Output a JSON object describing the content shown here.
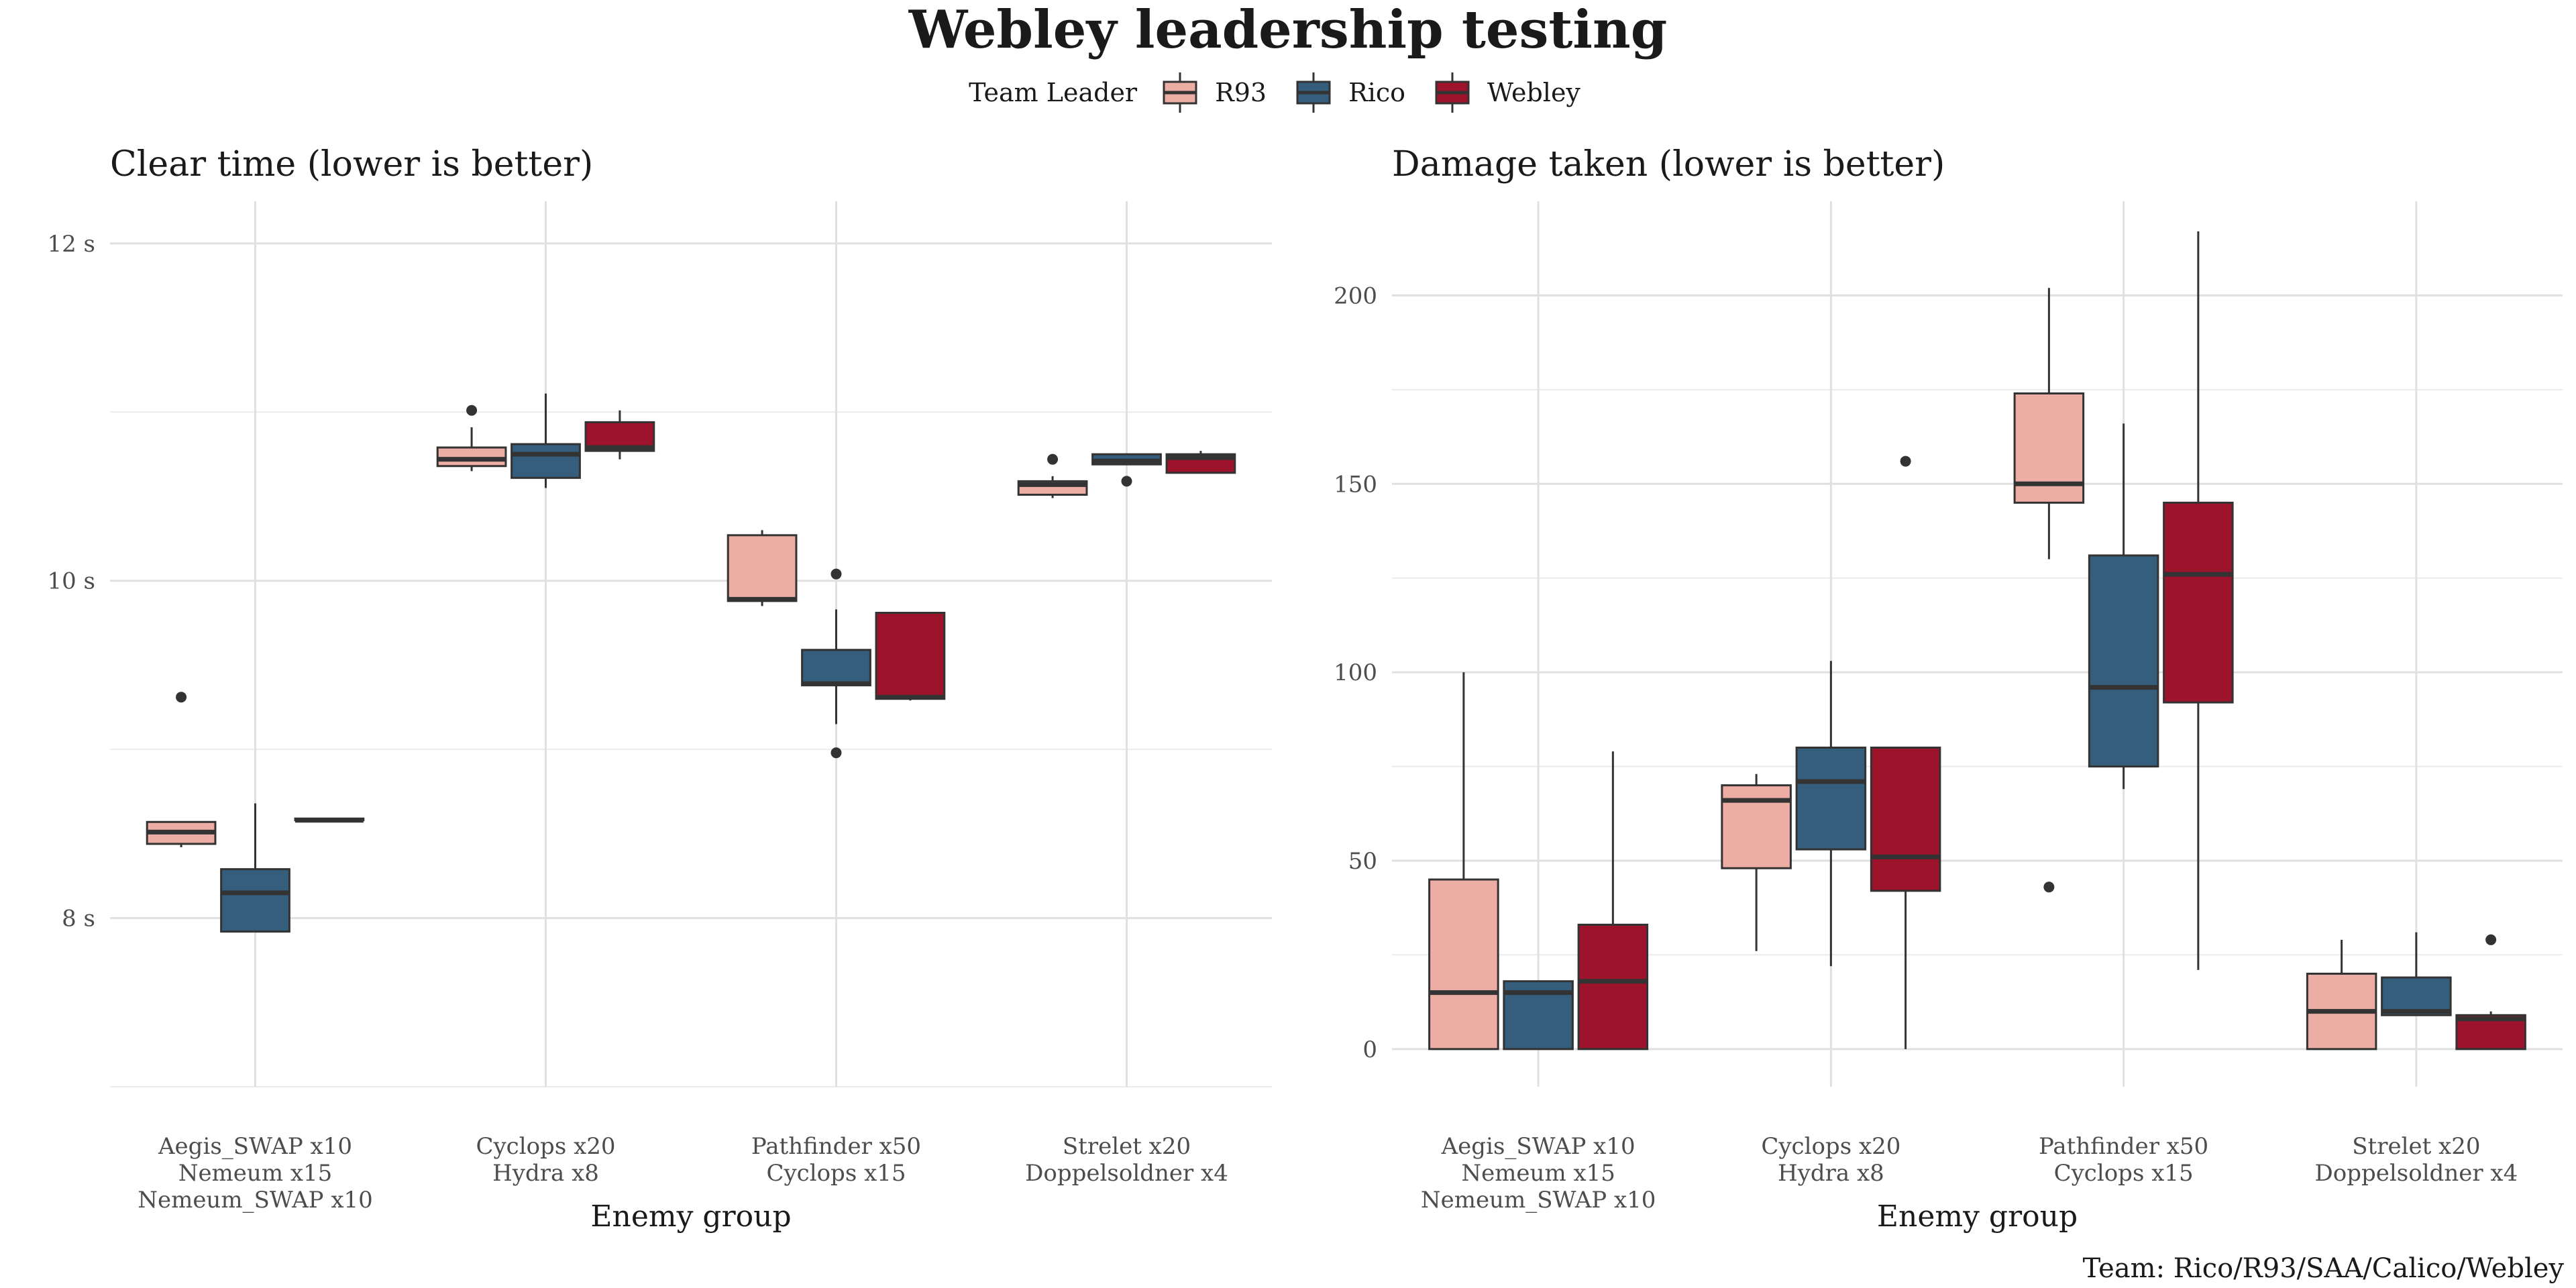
{
  "title": "Webley leadership testing",
  "legend": {
    "title": "Team Leader",
    "items": [
      {
        "label": "R93",
        "color": "#ECADA4"
      },
      {
        "label": "Rico",
        "color": "#355E7D"
      },
      {
        "label": "Webley",
        "color": "#9C132B"
      }
    ]
  },
  "caption": "Team: Rico/R93/SAA/Calico/Webley",
  "chart_data": [
    {
      "type": "boxplot",
      "title": "Clear time (lower is better)",
      "xlabel": "Enemy group",
      "ylabel": "",
      "ylim": [
        7,
        12.25
      ],
      "y_ticks": [
        8,
        10,
        12
      ],
      "y_tick_labels": [
        "8 s",
        "10 s",
        "12 s"
      ],
      "grid": true,
      "categories": [
        [
          "Aegis_SWAP x10",
          "Nemeum x15",
          "Nemeum_SWAP x10"
        ],
        [
          "Cyclops x20",
          "Hydra x8"
        ],
        [
          "Pathfinder x50",
          "Cyclops x15"
        ],
        [
          "Strelet x20",
          "Doppelsoldner x4"
        ]
      ],
      "series": [
        {
          "name": "R93",
          "boxes": [
            {
              "lw": 8.42,
              "q1": 8.44,
              "median": 8.51,
              "q3": 8.57,
              "uw": 8.57,
              "outliers": [
                9.31
              ]
            },
            {
              "lw": 10.65,
              "q1": 10.68,
              "median": 10.72,
              "q3": 10.79,
              "uw": 10.91,
              "outliers": [
                11.01
              ]
            },
            {
              "lw": 9.85,
              "q1": 9.88,
              "median": 9.89,
              "q3": 10.27,
              "uw": 10.3,
              "outliers": []
            },
            {
              "lw": 10.49,
              "q1": 10.51,
              "median": 10.57,
              "q3": 10.59,
              "uw": 10.62,
              "outliers": [
                10.72
              ]
            }
          ]
        },
        {
          "name": "Rico",
          "boxes": [
            {
              "lw": 7.92,
              "q1": 7.92,
              "median": 8.15,
              "q3": 8.29,
              "uw": 8.68,
              "outliers": []
            },
            {
              "lw": 10.55,
              "q1": 10.61,
              "median": 10.75,
              "q3": 10.81,
              "uw": 11.11,
              "outliers": []
            },
            {
              "lw": 9.15,
              "q1": 9.38,
              "median": 9.39,
              "q3": 9.59,
              "uw": 9.83,
              "outliers": [
                10.04,
                8.98
              ]
            },
            {
              "lw": 10.69,
              "q1": 10.69,
              "median": 10.71,
              "q3": 10.75,
              "uw": 10.75,
              "outliers": [
                10.59
              ]
            }
          ]
        },
        {
          "name": "Webley",
          "boxes": [
            {
              "lw": 8.58,
              "q1": 8.58,
              "median": 8.58,
              "q3": 8.59,
              "uw": 8.59,
              "outliers": []
            },
            {
              "lw": 10.72,
              "q1": 10.77,
              "median": 10.79,
              "q3": 10.94,
              "uw": 11.01,
              "outliers": []
            },
            {
              "lw": 9.29,
              "q1": 9.3,
              "median": 9.31,
              "q3": 9.81,
              "uw": 9.81,
              "outliers": []
            },
            {
              "lw": 10.64,
              "q1": 10.64,
              "median": 10.73,
              "q3": 10.75,
              "uw": 10.77,
              "outliers": []
            }
          ]
        }
      ]
    },
    {
      "type": "boxplot",
      "title": "Damage taken (lower is better)",
      "xlabel": "Enemy group",
      "ylabel": "",
      "ylim": [
        -10,
        225
      ],
      "y_ticks": [
        0,
        50,
        100,
        150,
        200
      ],
      "y_tick_labels": [
        "0",
        "50",
        "100",
        "150",
        "200"
      ],
      "grid": true,
      "categories": [
        [
          "Aegis_SWAP x10",
          "Nemeum x15",
          "Nemeum_SWAP x10"
        ],
        [
          "Cyclops x20",
          "Hydra x8"
        ],
        [
          "Pathfinder x50",
          "Cyclops x15"
        ],
        [
          "Strelet x20",
          "Doppelsoldner x4"
        ]
      ],
      "series": [
        {
          "name": "R93",
          "boxes": [
            {
              "lw": 0,
              "q1": 0,
              "median": 15,
              "q3": 45,
              "uw": 100,
              "outliers": []
            },
            {
              "lw": 26,
              "q1": 48,
              "median": 66,
              "q3": 70,
              "uw": 73,
              "outliers": []
            },
            {
              "lw": 130,
              "q1": 145,
              "median": 150,
              "q3": 174,
              "uw": 202,
              "outliers": [
                43
              ]
            },
            {
              "lw": 0,
              "q1": 0,
              "median": 10,
              "q3": 20,
              "uw": 29,
              "outliers": []
            }
          ]
        },
        {
          "name": "Rico",
          "boxes": [
            {
              "lw": 0,
              "q1": 0,
              "median": 15,
              "q3": 18,
              "uw": 18,
              "outliers": []
            },
            {
              "lw": 22,
              "q1": 53,
              "median": 71,
              "q3": 80,
              "uw": 103,
              "outliers": []
            },
            {
              "lw": 69,
              "q1": 75,
              "median": 96,
              "q3": 131,
              "uw": 166,
              "outliers": []
            },
            {
              "lw": 9,
              "q1": 9,
              "median": 10,
              "q3": 19,
              "uw": 31,
              "outliers": []
            }
          ]
        },
        {
          "name": "Webley",
          "boxes": [
            {
              "lw": 0,
              "q1": 0,
              "median": 18,
              "q3": 33,
              "uw": 79,
              "outliers": []
            },
            {
              "lw": 0,
              "q1": 42,
              "median": 51,
              "q3": 80,
              "uw": 80,
              "outliers": [
                156
              ]
            },
            {
              "lw": 21,
              "q1": 92,
              "median": 126,
              "q3": 145,
              "uw": 217,
              "outliers": []
            },
            {
              "lw": 0,
              "q1": 0,
              "median": 8,
              "q3": 9,
              "uw": 10,
              "outliers": [
                29
              ]
            }
          ]
        }
      ]
    }
  ]
}
